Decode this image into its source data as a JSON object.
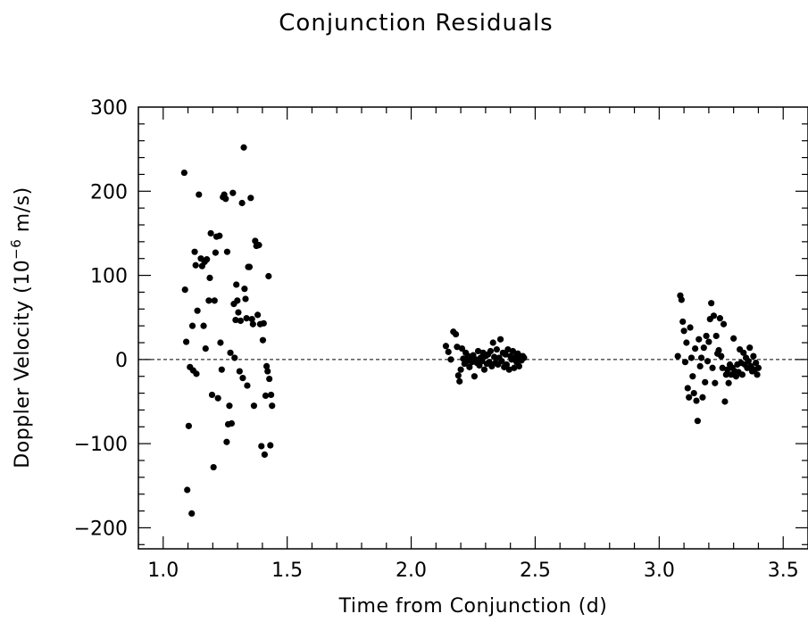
{
  "chart_data": {
    "type": "scatter",
    "title": "Conjunction Residuals",
    "xlabel": "Time from Conjunction (d)",
    "ylabel_main": "Doppler Velocity (10",
    "ylabel_exp": "−6",
    "ylabel_unit": " m/s)",
    "xlim": [
      0.9,
      3.6
    ],
    "ylim": [
      -225,
      300
    ],
    "xticks": [
      1.0,
      1.5,
      2.0,
      2.5,
      3.0,
      3.5
    ],
    "xtick_labels": [
      "1.0",
      "1.5",
      "2.0",
      "2.5",
      "3.0",
      "3.5"
    ],
    "yticks": [
      -200,
      -100,
      0,
      100,
      200,
      300
    ],
    "ytick_labels": [
      "−200",
      "−100",
      "0",
      "100",
      "200",
      "300"
    ],
    "reference_line_y": 0,
    "grid": false,
    "marker_color": "#000000",
    "points": [
      [
        1.085,
        222
      ],
      [
        1.088,
        83
      ],
      [
        1.093,
        21
      ],
      [
        1.097,
        -155
      ],
      [
        1.103,
        -79
      ],
      [
        1.108,
        -9
      ],
      [
        1.115,
        -183
      ],
      [
        1.118,
        40
      ],
      [
        1.121,
        -13
      ],
      [
        1.127,
        128
      ],
      [
        1.131,
        112
      ],
      [
        1.134,
        -17
      ],
      [
        1.138,
        58
      ],
      [
        1.144,
        196
      ],
      [
        1.152,
        120
      ],
      [
        1.157,
        111
      ],
      [
        1.163,
        40
      ],
      [
        1.167,
        116
      ],
      [
        1.171,
        13
      ],
      [
        1.176,
        119
      ],
      [
        1.184,
        70
      ],
      [
        1.188,
        97
      ],
      [
        1.192,
        150
      ],
      [
        1.197,
        -42
      ],
      [
        1.203,
        -128
      ],
      [
        1.207,
        70
      ],
      [
        1.211,
        127
      ],
      [
        1.215,
        146
      ],
      [
        1.221,
        -46
      ],
      [
        1.227,
        147
      ],
      [
        1.231,
        20
      ],
      [
        1.236,
        -12
      ],
      [
        1.241,
        193
      ],
      [
        1.246,
        196
      ],
      [
        1.252,
        191
      ],
      [
        1.256,
        -98
      ],
      [
        1.258,
        128
      ],
      [
        1.262,
        -77
      ],
      [
        1.267,
        -55
      ],
      [
        1.271,
        8
      ],
      [
        1.276,
        -76
      ],
      [
        1.281,
        198
      ],
      [
        1.285,
        66
      ],
      [
        1.288,
        2
      ],
      [
        1.292,
        47
      ],
      [
        1.295,
        89
      ],
      [
        1.299,
        70
      ],
      [
        1.303,
        56
      ],
      [
        1.308,
        -14
      ],
      [
        1.312,
        46
      ],
      [
        1.318,
        186
      ],
      [
        1.321,
        -22
      ],
      [
        1.325,
        252
      ],
      [
        1.328,
        84
      ],
      [
        1.332,
        72
      ],
      [
        1.336,
        49
      ],
      [
        1.339,
        -31
      ],
      [
        1.343,
        110
      ],
      [
        1.348,
        110
      ],
      [
        1.353,
        192
      ],
      [
        1.358,
        48
      ],
      [
        1.362,
        42
      ],
      [
        1.366,
        -55
      ],
      [
        1.371,
        141
      ],
      [
        1.376,
        135
      ],
      [
        1.381,
        53
      ],
      [
        1.386,
        136
      ],
      [
        1.391,
        42
      ],
      [
        1.396,
        -103
      ],
      [
        1.402,
        23
      ],
      [
        1.405,
        43
      ],
      [
        1.409,
        -113
      ],
      [
        1.413,
        -43
      ],
      [
        1.417,
        -8
      ],
      [
        1.421,
        -14
      ],
      [
        1.425,
        99
      ],
      [
        1.428,
        -23
      ],
      [
        1.432,
        -102
      ],
      [
        1.435,
        -42
      ],
      [
        1.439,
        -55
      ],
      [
        2.14,
        16
      ],
      [
        2.15,
        9
      ],
      [
        2.16,
        0
      ],
      [
        2.17,
        33
      ],
      [
        2.18,
        30
      ],
      [
        2.185,
        15
      ],
      [
        2.19,
        -19
      ],
      [
        2.195,
        -26
      ],
      [
        2.2,
        -12
      ],
      [
        2.205,
        13
      ],
      [
        2.21,
        1
      ],
      [
        2.215,
        -5
      ],
      [
        2.22,
        8
      ],
      [
        2.225,
        -2
      ],
      [
        2.23,
        4
      ],
      [
        2.235,
        -9
      ],
      [
        2.24,
        2
      ],
      [
        2.245,
        -3
      ],
      [
        2.25,
        5
      ],
      [
        2.255,
        -20
      ],
      [
        2.26,
        0
      ],
      [
        2.265,
        -4
      ],
      [
        2.27,
        10
      ],
      [
        2.275,
        -7
      ],
      [
        2.28,
        2
      ],
      [
        2.285,
        -2
      ],
      [
        2.29,
        8
      ],
      [
        2.295,
        -12
      ],
      [
        2.3,
        4
      ],
      [
        2.305,
        -5
      ],
      [
        2.31,
        6
      ],
      [
        2.315,
        -3
      ],
      [
        2.32,
        10
      ],
      [
        2.325,
        -8
      ],
      [
        2.33,
        20
      ],
      [
        2.335,
        3
      ],
      [
        2.34,
        -4
      ],
      [
        2.345,
        12
      ],
      [
        2.35,
        -6
      ],
      [
        2.355,
        2
      ],
      [
        2.36,
        24
      ],
      [
        2.365,
        -2
      ],
      [
        2.37,
        8
      ],
      [
        2.375,
        -9
      ],
      [
        2.38,
        6
      ],
      [
        2.385,
        -6
      ],
      [
        2.39,
        12
      ],
      [
        2.395,
        -12
      ],
      [
        2.4,
        4
      ],
      [
        2.405,
        0
      ],
      [
        2.41,
        10
      ],
      [
        2.415,
        -10
      ],
      [
        2.42,
        3
      ],
      [
        2.425,
        -3
      ],
      [
        2.43,
        7
      ],
      [
        2.435,
        -8
      ],
      [
        2.44,
        1
      ],
      [
        2.445,
        -1
      ],
      [
        2.45,
        4
      ],
      [
        2.455,
        2
      ],
      [
        3.075,
        4
      ],
      [
        3.085,
        76
      ],
      [
        3.09,
        71
      ],
      [
        3.095,
        45
      ],
      [
        3.1,
        34
      ],
      [
        3.105,
        -3
      ],
      [
        3.11,
        20
      ],
      [
        3.115,
        -34
      ],
      [
        3.12,
        -45
      ],
      [
        3.125,
        38
      ],
      [
        3.13,
        2
      ],
      [
        3.135,
        -20
      ],
      [
        3.14,
        -40
      ],
      [
        3.145,
        13
      ],
      [
        3.15,
        -49
      ],
      [
        3.155,
        -73
      ],
      [
        3.16,
        24
      ],
      [
        3.165,
        -8
      ],
      [
        3.17,
        2
      ],
      [
        3.175,
        -45
      ],
      [
        3.18,
        14
      ],
      [
        3.185,
        -27
      ],
      [
        3.19,
        28
      ],
      [
        3.195,
        -2
      ],
      [
        3.2,
        21
      ],
      [
        3.205,
        48
      ],
      [
        3.21,
        67
      ],
      [
        3.215,
        -10
      ],
      [
        3.22,
        52
      ],
      [
        3.225,
        -28
      ],
      [
        3.23,
        28
      ],
      [
        3.235,
        7
      ],
      [
        3.24,
        11
      ],
      [
        3.245,
        49
      ],
      [
        3.25,
        4
      ],
      [
        3.255,
        -10
      ],
      [
        3.26,
        42
      ],
      [
        3.265,
        -50
      ],
      [
        3.27,
        -18
      ],
      [
        3.275,
        -12
      ],
      [
        3.28,
        -28
      ],
      [
        3.285,
        -6
      ],
      [
        3.29,
        -18
      ],
      [
        3.295,
        -10
      ],
      [
        3.3,
        25
      ],
      [
        3.305,
        -14
      ],
      [
        3.31,
        -20
      ],
      [
        3.315,
        -6
      ],
      [
        3.32,
        -15
      ],
      [
        3.325,
        12
      ],
      [
        3.33,
        -4
      ],
      [
        3.335,
        -18
      ],
      [
        3.34,
        8
      ],
      [
        3.345,
        -6
      ],
      [
        3.35,
        2
      ],
      [
        3.355,
        -10
      ],
      [
        3.36,
        -2
      ],
      [
        3.365,
        14
      ],
      [
        3.37,
        -8
      ],
      [
        3.375,
        -14
      ],
      [
        3.38,
        4
      ],
      [
        3.385,
        -12
      ],
      [
        3.39,
        -4
      ],
      [
        3.395,
        -18
      ],
      [
        3.4,
        -10
      ]
    ]
  }
}
